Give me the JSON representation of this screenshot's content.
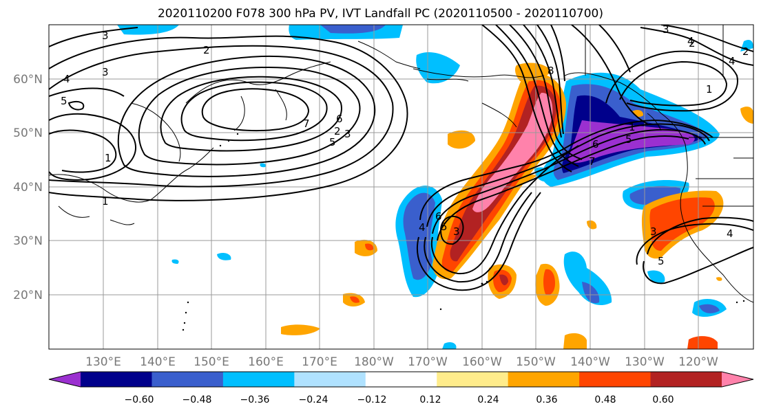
{
  "title": "2020110200 F078 300 hPa PV, IVT Landfall PC (2020110500 - 2020110700)",
  "lat_labels": [
    "60°N",
    "50°N",
    "40°N",
    "30°N",
    "20°N"
  ],
  "lon_labels": [
    "130°E",
    "140°E",
    "150°E",
    "160°E",
    "170°E",
    "180°W",
    "170°W",
    "160°W",
    "150°W",
    "140°W",
    "130°W",
    "120°W"
  ],
  "colorbar": {
    "ticks": [
      "−0.60",
      "−0.48",
      "−0.36",
      "−0.24",
      "−0.12",
      "0.12",
      "0.24",
      "0.36",
      "0.48",
      "0.60"
    ],
    "colors": [
      "#9b30d0",
      "#00008b",
      "#3a5fcd",
      "#00bfff",
      "#b0e2ff",
      "#ffffff",
      "#ffec8b",
      "#ffa500",
      "#ff4500",
      "#b22222",
      "#ff82ab"
    ]
  },
  "contour_labels": [
    "3",
    "2",
    "4",
    "3",
    "5",
    "1",
    "1",
    "7",
    "6",
    "5",
    "3",
    "2",
    "4",
    "6",
    "8",
    "3",
    "4",
    "5",
    "1",
    "2",
    "6",
    "5",
    "4",
    "3",
    "7",
    "3",
    "4",
    "5",
    "2",
    "1"
  ]
}
